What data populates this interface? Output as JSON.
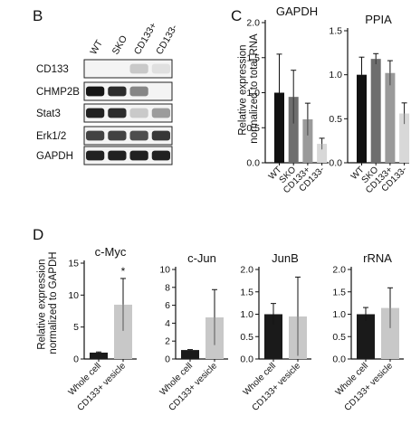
{
  "panel_b": {
    "letter": "B",
    "lanes": [
      "WT",
      "SKO",
      "CD133+",
      "CD133-"
    ],
    "rows": [
      {
        "label": "CD133",
        "intensity": [
          0.0,
          0.0,
          0.15,
          0.05
        ]
      },
      {
        "label": "CHMP2B",
        "intensity": [
          0.95,
          0.85,
          0.45,
          0.0
        ]
      },
      {
        "label": "Stat3",
        "intensity": [
          0.9,
          0.85,
          0.15,
          0.35
        ]
      },
      {
        "label": "Erk1/2",
        "intensity": [
          0.75,
          0.75,
          0.7,
          0.8
        ]
      },
      {
        "label": "GAPDH",
        "intensity": [
          0.9,
          0.9,
          0.9,
          0.9
        ]
      }
    ]
  },
  "panel_c": {
    "letter": "C",
    "ylabel": "Relative expression normalized to total RNA"
  },
  "panel_d": {
    "letter": "D",
    "ylabel": "Relative expression normalized to GAPDH"
  },
  "chart_data": [
    {
      "type": "bar",
      "title": "GAPDH",
      "categories": [
        "WT",
        "SKO",
        "CD133+",
        "CD133-"
      ],
      "values": [
        1.0,
        0.94,
        0.62,
        0.27
      ],
      "errors": [
        0.55,
        0.38,
        0.23,
        0.08
      ],
      "colors": [
        "#111111",
        "#6e6e6e",
        "#9a9a9a",
        "#d8d8d8"
      ],
      "ylim": [
        0,
        2
      ],
      "yticks": [
        "0.0",
        "0.5",
        "1.0",
        "1.5",
        "2.0"
      ]
    },
    {
      "type": "bar",
      "title": "PPIA",
      "categories": [
        "WT",
        "SKO",
        "CD133+",
        "CD133-"
      ],
      "values": [
        1.0,
        1.18,
        1.02,
        0.56
      ],
      "errors": [
        0.2,
        0.06,
        0.14,
        0.12
      ],
      "colors": [
        "#111111",
        "#6e6e6e",
        "#9a9a9a",
        "#d8d8d8"
      ],
      "ylim": [
        0,
        1.5
      ],
      "yticks": [
        "0.0",
        "0.5",
        "1.0",
        "1.5"
      ]
    },
    {
      "type": "bar",
      "title": "c-Myc",
      "categories": [
        "Whole cell",
        "CD133+ vesicle"
      ],
      "values": [
        1.0,
        8.5
      ],
      "errors": [
        0.1,
        4.1
      ],
      "colors": [
        "#1a1a1a",
        "#c8c8c8"
      ],
      "ylim": [
        0,
        15
      ],
      "yticks": [
        "0",
        "5",
        "10",
        "15"
      ],
      "annotation": "*"
    },
    {
      "type": "bar",
      "title": "c-Jun",
      "categories": [
        "Whole cell",
        "CD133+ vesicle"
      ],
      "values": [
        1.0,
        4.65
      ],
      "errors": [
        0.05,
        3.1
      ],
      "colors": [
        "#1a1a1a",
        "#c8c8c8"
      ],
      "ylim": [
        0,
        10
      ],
      "yticks": [
        "0",
        "2",
        "4",
        "6",
        "8",
        "10"
      ]
    },
    {
      "type": "bar",
      "title": "JunB",
      "categories": [
        "Whole cell",
        "CD133+ vesicle"
      ],
      "values": [
        1.0,
        0.95
      ],
      "errors": [
        0.24,
        0.88
      ],
      "colors": [
        "#1a1a1a",
        "#c8c8c8"
      ],
      "ylim": [
        0,
        2
      ],
      "yticks": [
        "0.0",
        "0.5",
        "1.0",
        "1.5",
        "2.0"
      ]
    },
    {
      "type": "bar",
      "title": "rRNA",
      "categories": [
        "Whole cell",
        "CD133+ vesicle"
      ],
      "values": [
        1.0,
        1.14
      ],
      "errors": [
        0.15,
        0.45
      ],
      "colors": [
        "#1a1a1a",
        "#c8c8c8"
      ],
      "ylim": [
        0,
        2
      ],
      "yticks": [
        "0.0",
        "0.5",
        "1.0",
        "1.5",
        "2.0"
      ]
    }
  ]
}
